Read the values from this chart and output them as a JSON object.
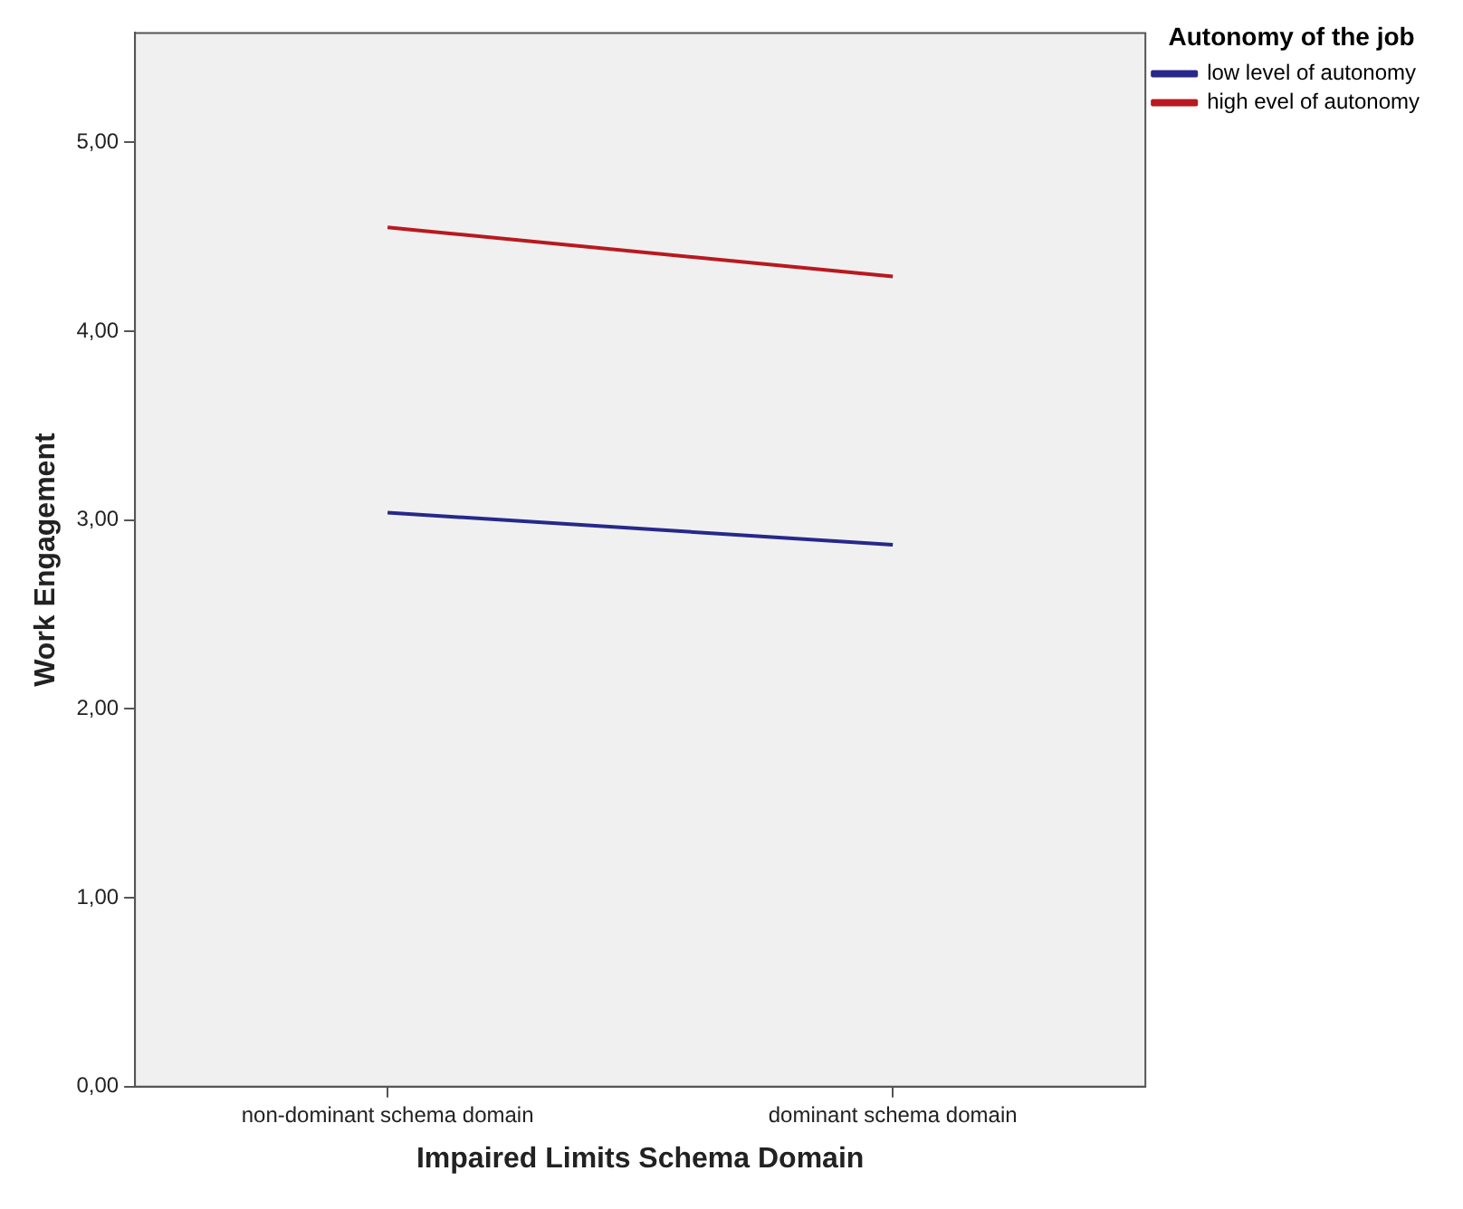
{
  "chart_data": {
    "type": "line",
    "xlabel": "Impaired Limits Schema Domain",
    "ylabel": "Work Engagement",
    "legend_title": "Autonomy of the job",
    "categories": [
      "non-dominant schema domain",
      "dominant schema domain"
    ],
    "series": [
      {
        "name": "low level of autonomy",
        "color": "#27288a",
        "values": [
          3.04,
          2.87
        ]
      },
      {
        "name": "high evel of autonomy",
        "color": "#b8191f",
        "values": [
          4.55,
          4.29
        ]
      }
    ],
    "ylim": [
      0,
      5.58
    ],
    "yticks": [
      {
        "value": 0,
        "label": "0,00"
      },
      {
        "value": 1,
        "label": "1,00"
      },
      {
        "value": 2,
        "label": "2,00"
      },
      {
        "value": 3,
        "label": "3,00"
      },
      {
        "value": 4,
        "label": "4,00"
      },
      {
        "value": 5,
        "label": "5,00"
      }
    ],
    "grid": false,
    "legend": "top right",
    "marker": "none",
    "line_style": "solid"
  }
}
